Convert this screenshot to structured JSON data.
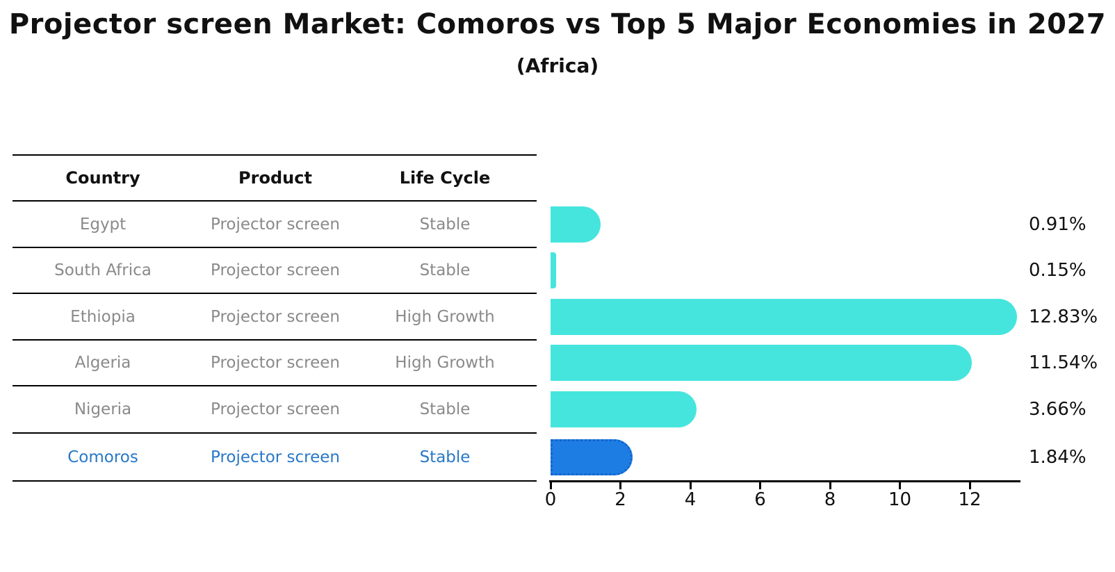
{
  "title": "Projector screen Market: Comoros vs Top 5 Major Economies in 2027",
  "subtitle": "(Africa)",
  "table": {
    "headers": [
      "Country",
      "Product",
      "Life Cycle"
    ],
    "rows": [
      {
        "cells": [
          "Egypt",
          "Projector screen",
          "Stable"
        ],
        "highlight": false
      },
      {
        "cells": [
          "South Africa",
          "Projector screen",
          "Stable"
        ],
        "highlight": false
      },
      {
        "cells": [
          "Ethiopia",
          "Projector screen",
          "High Growth"
        ],
        "highlight": false
      },
      {
        "cells": [
          "Algeria",
          "Projector screen",
          "High Growth"
        ],
        "highlight": false
      },
      {
        "cells": [
          "Nigeria",
          "Projector screen",
          "Stable"
        ],
        "highlight": false
      },
      {
        "cells": [
          "Comoros",
          "Projector screen",
          "Stable"
        ],
        "highlight": true
      }
    ]
  },
  "chart_data": {
    "type": "bar",
    "orientation": "horizontal",
    "title": "Projector screen Market: Comoros vs Top 5 Major Economies in 2027 (Africa)",
    "categories": [
      "Egypt",
      "South Africa",
      "Ethiopia",
      "Algeria",
      "Nigeria",
      "Comoros"
    ],
    "values": [
      0.91,
      0.15,
      12.83,
      11.54,
      3.66,
      1.84
    ],
    "value_labels": [
      "0.91%",
      "0.15%",
      "12.83%",
      "11.54%",
      "3.66%",
      "1.84%"
    ],
    "highlight_category": "Comoros",
    "x_ticks": [
      0,
      2,
      4,
      6,
      8,
      10,
      12
    ],
    "xlim": [
      0,
      13.45
    ],
    "grid": false,
    "legend": false
  },
  "colors": {
    "bar_default": "#45e5de",
    "bar_highlight": "#1e7de3",
    "bar_highlight_border": "#1463ce",
    "highlight_text": "#2878c8",
    "table_text": "#8a8a8a",
    "header_text": "#111111",
    "axis": "#000000",
    "background": "#ffffff"
  }
}
